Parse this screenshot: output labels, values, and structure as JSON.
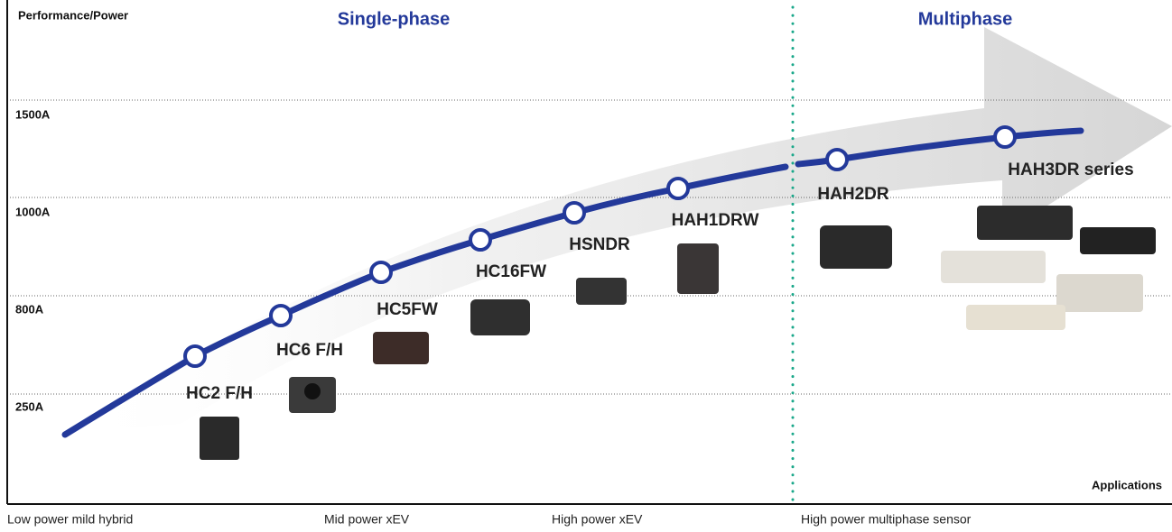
{
  "axis": {
    "y_title": "Performance/Power",
    "x_title": "Applications",
    "levels": [
      "1500A",
      "1000A",
      "800A",
      "250A"
    ]
  },
  "sections": [
    "Single-phase",
    "Multiphase"
  ],
  "products": [
    "HC2 F/H",
    "HC6 F/H",
    "HC5FW",
    "HC16FW",
    "HSNDR",
    "HAH1DRW",
    "HAH2DR",
    "HAH3DR series"
  ],
  "applications": [
    "Low power mild hybrid",
    "Mid power xEV",
    "High power xEV",
    "High power multiphase sensor"
  ]
}
